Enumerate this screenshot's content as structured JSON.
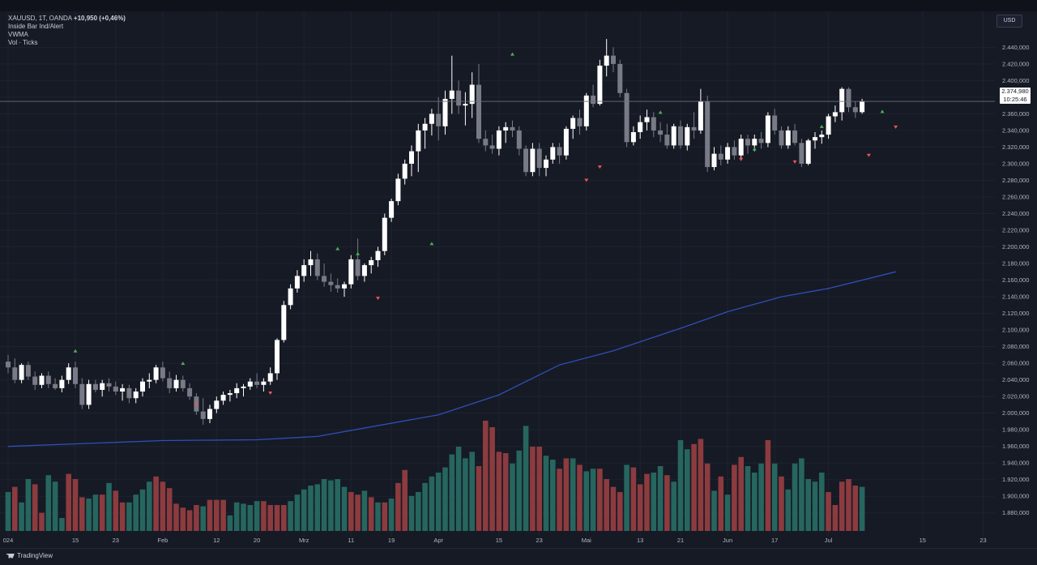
{
  "legend": {
    "symbol_line": "XAUUSD, 1T, OANDA",
    "change": "+10,950 (+0,46%)",
    "indicators": [
      "Inside Bar Ind/Alert",
      "VWMA",
      "Vol · Ticks"
    ]
  },
  "currency_label": "USD",
  "last_price": {
    "value": "2.374,980",
    "countdown": "10:25:46"
  },
  "branding": "TradingView",
  "colors": {
    "background": "#161a25",
    "up_candle": "#ffffff",
    "down_candle": "#787b86",
    "vol_up": "#26665f",
    "vol_down": "#8c3b3f",
    "vwma": "#2f4fb8",
    "signal_up": "#4caf50",
    "signal_down": "#ef5350"
  },
  "chart_data": {
    "type": "candlestick",
    "symbol": "XAUUSD",
    "y_axis": {
      "range": [
        1870,
        2455
      ],
      "ticks": [
        "2.440,000",
        "2.420,000",
        "2.400,000",
        "2.380,000",
        "2.360,000",
        "2.340,000",
        "2.320,000",
        "2.300,000",
        "2.280,000",
        "2.260,000",
        "2.240,000",
        "2.220,000",
        "2.200,000",
        "2.180,000",
        "2.160,000",
        "2.140,000",
        "2.120,000",
        "2.100,000",
        "2.080,000",
        "2.060,000",
        "2.040,000",
        "2.020,000",
        "2.000,000",
        "1.980,000",
        "1.960,000",
        "1.940,000",
        "1.920,000",
        "1.900,000",
        "1.880,000"
      ],
      "tick_values": [
        2440,
        2420,
        2400,
        2380,
        2360,
        2340,
        2320,
        2300,
        2280,
        2260,
        2240,
        2220,
        2200,
        2180,
        2160,
        2140,
        2120,
        2100,
        2080,
        2060,
        2040,
        2020,
        2000,
        1980,
        1960,
        1940,
        1920,
        1900,
        1880
      ]
    },
    "x_axis": {
      "labels": [
        "024",
        "15",
        "23",
        "Feb",
        "12",
        "20",
        "Mrz",
        "11",
        "19",
        "Apr",
        "15",
        "23",
        "Mai",
        "13",
        "21",
        "Jun",
        "17",
        "Jul",
        "15",
        "23"
      ],
      "label_bar_index": [
        0,
        10,
        16,
        23,
        31,
        37,
        44,
        51,
        57,
        64,
        73,
        79,
        86,
        94,
        100,
        107,
        114,
        122,
        136,
        145
      ]
    },
    "candles": [
      [
        2062,
        2070,
        2048,
        2055
      ],
      [
        2055,
        2066,
        2036,
        2040
      ],
      [
        2040,
        2060,
        2036,
        2058
      ],
      [
        2058,
        2062,
        2040,
        2044
      ],
      [
        2044,
        2050,
        2028,
        2034
      ],
      [
        2034,
        2048,
        2030,
        2045
      ],
      [
        2045,
        2050,
        2030,
        2035
      ],
      [
        2035,
        2042,
        2028,
        2030
      ],
      [
        2030,
        2045,
        2025,
        2040
      ],
      [
        2040,
        2060,
        2035,
        2055
      ],
      [
        2055,
        2062,
        2030,
        2035
      ],
      [
        2035,
        2042,
        2005,
        2010
      ],
      [
        2010,
        2040,
        2005,
        2035
      ],
      [
        2035,
        2040,
        2025,
        2028
      ],
      [
        2028,
        2040,
        2020,
        2036
      ],
      [
        2036,
        2042,
        2026,
        2032
      ],
      [
        2032,
        2038,
        2022,
        2026
      ],
      [
        2026,
        2035,
        2015,
        2030
      ],
      [
        2030,
        2034,
        2012,
        2018
      ],
      [
        2018,
        2030,
        2012,
        2026
      ],
      [
        2026,
        2042,
        2020,
        2038
      ],
      [
        2038,
        2048,
        2030,
        2040
      ],
      [
        2040,
        2058,
        2036,
        2055
      ],
      [
        2055,
        2062,
        2038,
        2042
      ],
      [
        2042,
        2050,
        2024,
        2030
      ],
      [
        2030,
        2046,
        2026,
        2040
      ],
      [
        2040,
        2045,
        2026,
        2030
      ],
      [
        2030,
        2036,
        2016,
        2020
      ],
      [
        2020,
        2024,
        1998,
        2002
      ],
      [
        2002,
        2018,
        1986,
        1993
      ],
      [
        1993,
        2010,
        1988,
        2005
      ],
      [
        2005,
        2020,
        2000,
        2015
      ],
      [
        2015,
        2026,
        2010,
        2022
      ],
      [
        2022,
        2028,
        2014,
        2024
      ],
      [
        2024,
        2036,
        2018,
        2030
      ],
      [
        2030,
        2035,
        2020,
        2032
      ],
      [
        2032,
        2042,
        2028,
        2038
      ],
      [
        2038,
        2048,
        2030,
        2034
      ],
      [
        2034,
        2042,
        2026,
        2038
      ],
      [
        2038,
        2055,
        2034,
        2048
      ],
      [
        2048,
        2090,
        2040,
        2088
      ],
      [
        2088,
        2135,
        2085,
        2130
      ],
      [
        2130,
        2155,
        2125,
        2150
      ],
      [
        2150,
        2172,
        2145,
        2165
      ],
      [
        2165,
        2185,
        2158,
        2178
      ],
      [
        2178,
        2195,
        2165,
        2185
      ],
      [
        2185,
        2192,
        2160,
        2165
      ],
      [
        2165,
        2180,
        2152,
        2158
      ],
      [
        2158,
        2168,
        2146,
        2154
      ],
      [
        2154,
        2162,
        2145,
        2150
      ],
      [
        2150,
        2158,
        2140,
        2155
      ],
      [
        2155,
        2190,
        2150,
        2185
      ],
      [
        2185,
        2210,
        2160,
        2165
      ],
      [
        2165,
        2180,
        2158,
        2178
      ],
      [
        2178,
        2188,
        2168,
        2184
      ],
      [
        2184,
        2200,
        2176,
        2195
      ],
      [
        2195,
        2240,
        2190,
        2235
      ],
      [
        2235,
        2258,
        2230,
        2255
      ],
      [
        2255,
        2288,
        2250,
        2282
      ],
      [
        2282,
        2305,
        2275,
        2300
      ],
      [
        2300,
        2322,
        2285,
        2315
      ],
      [
        2315,
        2348,
        2290,
        2340
      ],
      [
        2340,
        2355,
        2318,
        2348
      ],
      [
        2348,
        2366,
        2334,
        2360
      ],
      [
        2360,
        2380,
        2328,
        2345
      ],
      [
        2345,
        2388,
        2335,
        2378
      ],
      [
        2378,
        2430,
        2360,
        2388
      ],
      [
        2388,
        2400,
        2360,
        2370
      ],
      [
        2370,
        2386,
        2346,
        2372
      ],
      [
        2372,
        2410,
        2355,
        2395
      ],
      [
        2395,
        2420,
        2325,
        2330
      ],
      [
        2330,
        2340,
        2315,
        2322
      ],
      [
        2322,
        2335,
        2312,
        2318
      ],
      [
        2318,
        2345,
        2310,
        2340
      ],
      [
        2340,
        2350,
        2325,
        2344
      ],
      [
        2344,
        2352,
        2332,
        2340
      ],
      [
        2340,
        2345,
        2310,
        2318
      ],
      [
        2318,
        2322,
        2285,
        2290
      ],
      [
        2290,
        2325,
        2285,
        2318
      ],
      [
        2318,
        2325,
        2285,
        2295
      ],
      [
        2295,
        2310,
        2285,
        2305
      ],
      [
        2305,
        2325,
        2300,
        2320
      ],
      [
        2320,
        2325,
        2300,
        2310
      ],
      [
        2310,
        2345,
        2305,
        2342
      ],
      [
        2342,
        2358,
        2330,
        2355
      ],
      [
        2355,
        2365,
        2335,
        2345
      ],
      [
        2345,
        2385,
        2340,
        2382
      ],
      [
        2382,
        2395,
        2368,
        2372
      ],
      [
        2372,
        2425,
        2370,
        2418
      ],
      [
        2418,
        2450,
        2405,
        2430
      ],
      [
        2430,
        2440,
        2410,
        2420
      ],
      [
        2420,
        2425,
        2380,
        2385
      ],
      [
        2385,
        2390,
        2320,
        2326
      ],
      [
        2326,
        2345,
        2322,
        2338
      ],
      [
        2338,
        2358,
        2330,
        2350
      ],
      [
        2350,
        2365,
        2340,
        2356
      ],
      [
        2356,
        2362,
        2332,
        2340
      ],
      [
        2340,
        2350,
        2326,
        2335
      ],
      [
        2335,
        2348,
        2318,
        2322
      ],
      [
        2322,
        2348,
        2318,
        2345
      ],
      [
        2345,
        2352,
        2318,
        2322
      ],
      [
        2322,
        2348,
        2316,
        2344
      ],
      [
        2344,
        2362,
        2330,
        2340
      ],
      [
        2340,
        2390,
        2336,
        2375
      ],
      [
        2375,
        2382,
        2290,
        2296
      ],
      [
        2296,
        2320,
        2292,
        2312
      ],
      [
        2312,
        2322,
        2298,
        2305
      ],
      [
        2305,
        2325,
        2300,
        2320
      ],
      [
        2320,
        2328,
        2305,
        2310
      ],
      [
        2310,
        2335,
        2305,
        2330
      ],
      [
        2330,
        2335,
        2312,
        2322
      ],
      [
        2322,
        2335,
        2315,
        2330
      ],
      [
        2330,
        2338,
        2318,
        2325
      ],
      [
        2325,
        2362,
        2320,
        2358
      ],
      [
        2358,
        2366,
        2335,
        2340
      ],
      [
        2340,
        2345,
        2318,
        2322
      ],
      [
        2322,
        2345,
        2318,
        2340
      ],
      [
        2340,
        2348,
        2322,
        2325
      ],
      [
        2325,
        2330,
        2296,
        2300
      ],
      [
        2300,
        2330,
        2298,
        2328
      ],
      [
        2328,
        2338,
        2318,
        2332
      ],
      [
        2332,
        2340,
        2324,
        2335
      ],
      [
        2335,
        2360,
        2330,
        2357
      ],
      [
        2357,
        2370,
        2350,
        2362
      ],
      [
        2362,
        2392,
        2352,
        2390
      ],
      [
        2390,
        2392,
        2362,
        2368
      ],
      [
        2368,
        2375,
        2355,
        2362
      ],
      [
        2362,
        2378,
        2360,
        2375
      ]
    ],
    "vwma": {
      "start": [
        0,
        1960
      ],
      "points": [
        [
          0,
          1960
        ],
        [
          23,
          1967
        ],
        [
          37,
          1968
        ],
        [
          46,
          1972
        ],
        [
          55,
          1985
        ],
        [
          64,
          1998
        ],
        [
          73,
          2022
        ],
        [
          82,
          2058
        ],
        [
          90,
          2075
        ],
        [
          100,
          2102
        ],
        [
          107,
          2122
        ],
        [
          115,
          2140
        ],
        [
          122,
          2150
        ],
        [
          132,
          2170
        ]
      ]
    },
    "volume_axis_max": 100,
    "volume": [
      [
        30,
        "u"
      ],
      [
        34,
        "d"
      ],
      [
        22,
        "u"
      ],
      [
        40,
        "u"
      ],
      [
        36,
        "d"
      ],
      [
        14,
        "d"
      ],
      [
        43,
        "u"
      ],
      [
        38,
        "u"
      ],
      [
        10,
        "u"
      ],
      [
        44,
        "d"
      ],
      [
        40,
        "d"
      ],
      [
        26,
        "d"
      ],
      [
        25,
        "u"
      ],
      [
        28,
        "u"
      ],
      [
        28,
        "d"
      ],
      [
        37,
        "u"
      ],
      [
        31,
        "d"
      ],
      [
        22,
        "d"
      ],
      [
        22,
        "u"
      ],
      [
        28,
        "u"
      ],
      [
        32,
        "u"
      ],
      [
        38,
        "u"
      ],
      [
        42,
        "d"
      ],
      [
        38,
        "d"
      ],
      [
        33,
        "d"
      ],
      [
        21,
        "d"
      ],
      [
        18,
        "d"
      ],
      [
        16,
        "d"
      ],
      [
        20,
        "d"
      ],
      [
        19,
        "u"
      ],
      [
        24,
        "d"
      ],
      [
        24,
        "d"
      ],
      [
        24,
        "d"
      ],
      [
        12,
        "u"
      ],
      [
        22,
        "u"
      ],
      [
        21,
        "u"
      ],
      [
        20,
        "u"
      ],
      [
        23,
        "u"
      ],
      [
        23,
        "d"
      ],
      [
        20,
        "d"
      ],
      [
        20,
        "d"
      ],
      [
        20,
        "d"
      ],
      [
        23,
        "u"
      ],
      [
        28,
        "u"
      ],
      [
        32,
        "u"
      ],
      [
        35,
        "u"
      ],
      [
        36,
        "u"
      ],
      [
        40,
        "u"
      ],
      [
        39,
        "u"
      ],
      [
        40,
        "u"
      ],
      [
        34,
        "u"
      ],
      [
        30,
        "d"
      ],
      [
        28,
        "d"
      ],
      [
        31,
        "u"
      ],
      [
        26,
        "d"
      ],
      [
        22,
        "u"
      ],
      [
        22,
        "d"
      ],
      [
        25,
        "u"
      ],
      [
        37,
        "d"
      ],
      [
        47,
        "d"
      ],
      [
        27,
        "u"
      ],
      [
        30,
        "u"
      ],
      [
        37,
        "u"
      ],
      [
        42,
        "u"
      ],
      [
        45,
        "u"
      ],
      [
        49,
        "u"
      ],
      [
        59,
        "u"
      ],
      [
        65,
        "u"
      ],
      [
        56,
        "u"
      ],
      [
        61,
        "u"
      ],
      [
        50,
        "d"
      ],
      [
        85,
        "d"
      ],
      [
        80,
        "d"
      ],
      [
        61,
        "d"
      ],
      [
        60,
        "d"
      ],
      [
        52,
        "u"
      ],
      [
        62,
        "u"
      ],
      [
        81,
        "u"
      ],
      [
        65,
        "d"
      ],
      [
        65,
        "d"
      ],
      [
        58,
        "u"
      ],
      [
        55,
        "u"
      ],
      [
        48,
        "d"
      ],
      [
        56,
        "d"
      ],
      [
        56,
        "u"
      ],
      [
        51,
        "d"
      ],
      [
        46,
        "u"
      ],
      [
        48,
        "u"
      ],
      [
        48,
        "d"
      ],
      [
        40,
        "d"
      ],
      [
        34,
        "d"
      ],
      [
        30,
        "d"
      ],
      [
        51,
        "u"
      ],
      [
        49,
        "d"
      ],
      [
        36,
        "d"
      ],
      [
        44,
        "d"
      ],
      [
        45,
        "u"
      ],
      [
        50,
        "u"
      ],
      [
        43,
        "d"
      ],
      [
        38,
        "u"
      ],
      [
        70,
        "u"
      ],
      [
        63,
        "u"
      ],
      [
        67,
        "d"
      ],
      [
        71,
        "d"
      ],
      [
        52,
        "d"
      ],
      [
        31,
        "u"
      ],
      [
        42,
        "d"
      ],
      [
        28,
        "u"
      ],
      [
        51,
        "d"
      ],
      [
        57,
        "d"
      ],
      [
        50,
        "u"
      ],
      [
        45,
        "u"
      ],
      [
        52,
        "u"
      ],
      [
        70,
        "d"
      ],
      [
        52,
        "u"
      ],
      [
        42,
        "d"
      ],
      [
        32,
        "u"
      ],
      [
        52,
        "u"
      ],
      [
        56,
        "u"
      ],
      [
        40,
        "u"
      ],
      [
        38,
        "u"
      ],
      [
        45,
        "u"
      ],
      [
        30,
        "d"
      ],
      [
        20,
        "d"
      ],
      [
        38,
        "d"
      ],
      [
        40,
        "d"
      ],
      [
        35,
        "d"
      ],
      [
        34,
        "u"
      ]
    ],
    "signals_up": [
      [
        10,
        2075
      ],
      [
        26,
        2060
      ],
      [
        49,
        2198
      ],
      [
        52,
        2192
      ],
      [
        63,
        2204
      ],
      [
        75,
        2432
      ],
      [
        97,
        2362
      ],
      [
        111,
        2318
      ],
      [
        121,
        2345
      ],
      [
        130,
        2363
      ]
    ],
    "signals_down": [
      [
        28,
        2010
      ],
      [
        39,
        2024
      ],
      [
        55,
        2138
      ],
      [
        86,
        2280
      ],
      [
        88,
        2296
      ],
      [
        109,
        2305
      ],
      [
        117,
        2302
      ],
      [
        128,
        2310
      ],
      [
        132,
        2344
      ]
    ],
    "last_price_value": 2374.98
  }
}
